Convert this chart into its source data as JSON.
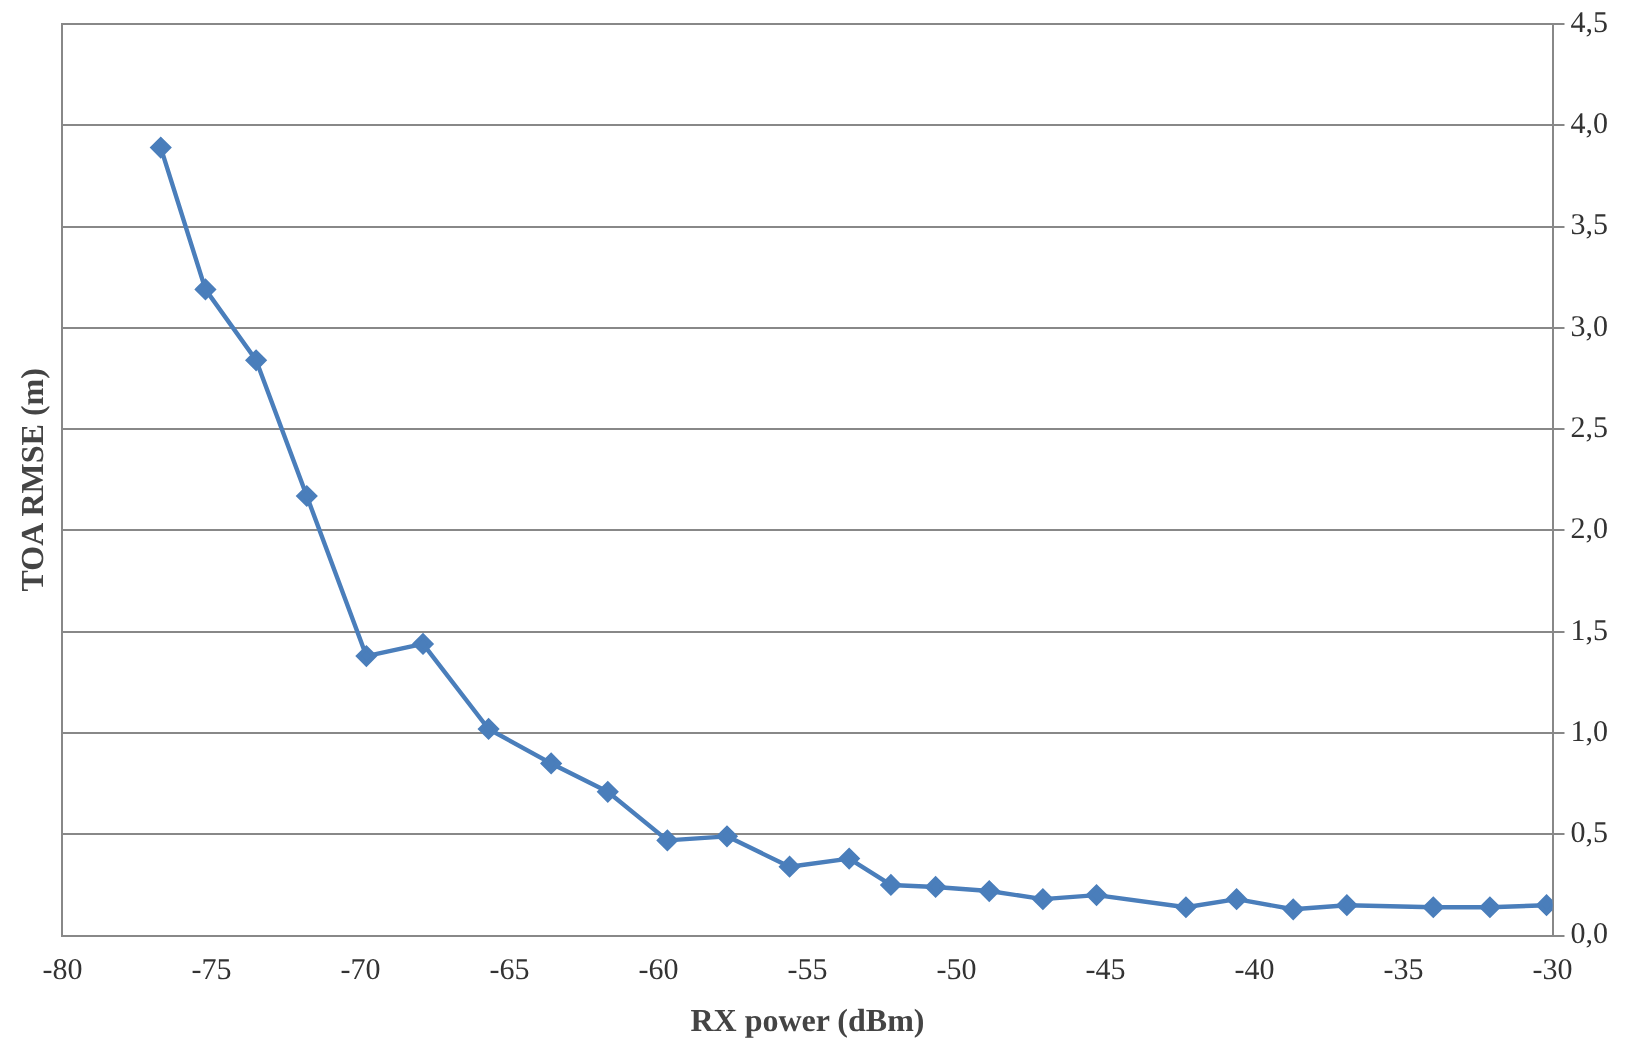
{
  "chart_data": {
    "type": "line",
    "xlabel": "RX power (dBm)",
    "ylabel": "TOA RMSE (m)",
    "series": [
      {
        "color": "#4a7ebb",
        "x": [
          -76.7,
          -75.2,
          -73.5,
          -71.8,
          -69.8,
          -67.9,
          -65.7,
          -63.6,
          -61.7,
          -59.7,
          -57.7,
          -55.6,
          -53.6,
          -52.2,
          -50.7,
          -48.9,
          -47.1,
          -45.3,
          -42.3,
          -40.6,
          -38.7,
          -36.9,
          -34.0,
          -32.1,
          -30.2
        ],
        "values": [
          3.89,
          3.19,
          2.84,
          2.17,
          1.38,
          1.44,
          1.02,
          0.85,
          0.71,
          0.47,
          0.49,
          0.34,
          0.38,
          0.25,
          0.24,
          0.22,
          0.18,
          0.2,
          0.14,
          0.18,
          0.13,
          0.15,
          0.14,
          0.14,
          0.15
        ]
      }
    ],
    "xlim": [
      -80,
      -30
    ],
    "xticks": [
      -80,
      -75,
      -70,
      -65,
      -60,
      -55,
      -50,
      -45,
      -40,
      -35,
      -30
    ],
    "ylim": [
      0,
      4.5
    ],
    "yticks": [
      {
        "value": 0,
        "label": "0,0"
      },
      {
        "value": 0.5,
        "label": "0,5"
      },
      {
        "value": 1,
        "label": "1,0"
      },
      {
        "value": 1.5,
        "label": "1,5"
      },
      {
        "value": 2,
        "label": "2,0"
      },
      {
        "value": 2.5,
        "label": "2,5"
      },
      {
        "value": 3,
        "label": "3,0"
      },
      {
        "value": 3.5,
        "label": "3,5"
      },
      {
        "value": 4,
        "label": "4,0"
      },
      {
        "value": 4.5,
        "label": "4,5"
      }
    ],
    "grid": "y",
    "marker": "diamond",
    "line_style": "solid",
    "legend": false
  }
}
